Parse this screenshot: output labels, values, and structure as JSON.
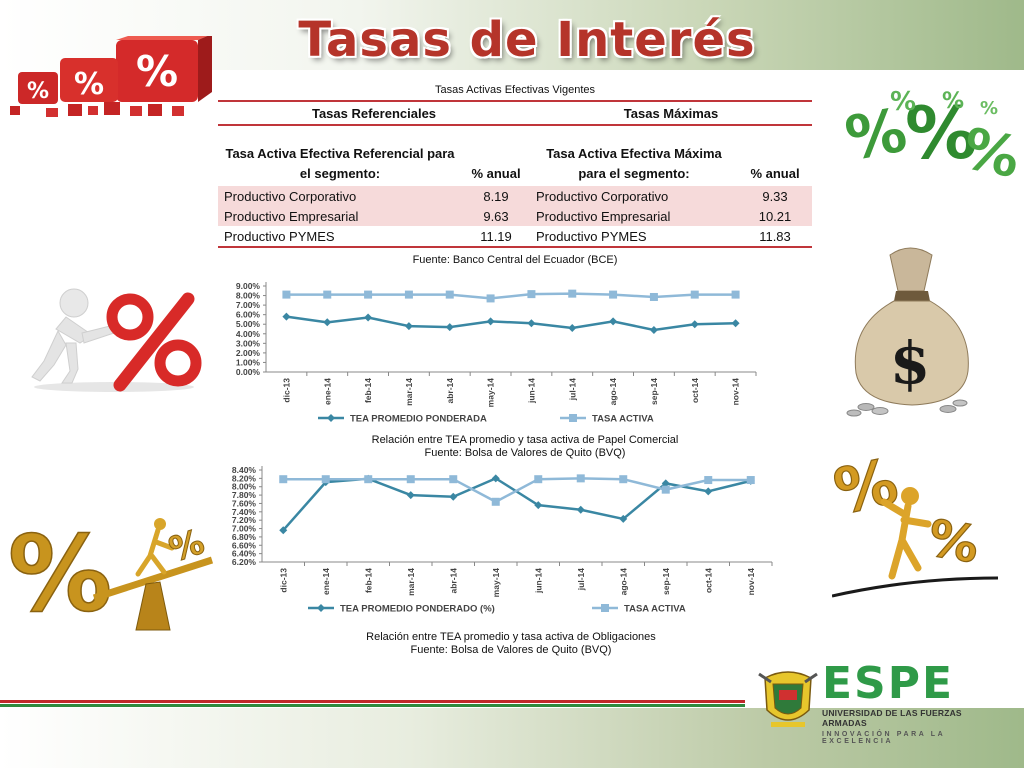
{
  "title": "Tasas de Interés",
  "table": {
    "caption": "Tasas Activas Efectivas Vigentes",
    "group_left": "Tasas Referenciales",
    "group_right": "Tasas Máximas",
    "col1_header": "Tasa Activa Efectiva Referencial para el segmento:",
    "col2_header": "% anual",
    "col3_header": "Tasa Activa Efectiva Máxima para el segmento:",
    "col4_header": "% anual",
    "rows": [
      {
        "ref_segment": "Productivo Corporativo",
        "ref_rate": "8.19",
        "max_segment": "Productivo Corporativo",
        "max_rate": "9.33"
      },
      {
        "ref_segment": "Productivo Empresarial",
        "ref_rate": "9.63",
        "max_segment": "Productivo Empresarial",
        "max_rate": "10.21"
      },
      {
        "ref_segment": "Productivo PYMES",
        "ref_rate": "11.19",
        "max_segment": "Productivo PYMES",
        "max_rate": "11.83"
      }
    ],
    "source": "Fuente: Banco Central del Ecuador (BCE)"
  },
  "chart1_caption": "Relación entre TEA promedio y tasa activa de Papel Comercial",
  "chart1_source": "Fuente: Bolsa de Valores de Quito (BVQ)",
  "chart2_caption": "Relación entre TEA promedio y tasa activa de Obligaciones",
  "chart2_source": "Fuente: Bolsa de Valores de Quito (BVQ)",
  "chart_data": [
    {
      "type": "line",
      "categories": [
        "dic-13",
        "ene-14",
        "feb-14",
        "mar-14",
        "abr-14",
        "may-14",
        "jun-14",
        "jul-14",
        "ago-14",
        "sep-14",
        "oct-14",
        "nov-14"
      ],
      "yticks": [
        "0.00%",
        "1.00%",
        "2.00%",
        "3.00%",
        "4.00%",
        "5.00%",
        "6.00%",
        "7.00%",
        "8.00%",
        "9.00%"
      ],
      "ylim": [
        0,
        9
      ],
      "series": [
        {
          "name": "TEA PROMEDIO PONDERADA",
          "color": "#3a87a3",
          "marker": "diamond",
          "values": [
            5.8,
            5.2,
            5.7,
            4.8,
            4.7,
            5.3,
            5.1,
            4.6,
            5.3,
            4.4,
            5.0,
            5.1
          ]
        },
        {
          "name": "TASA ACTIVA",
          "color": "#8fb9d8",
          "marker": "square",
          "values": [
            8.1,
            8.1,
            8.1,
            8.1,
            8.1,
            7.7,
            8.15,
            8.2,
            8.1,
            7.85,
            8.1,
            8.1
          ]
        }
      ]
    },
    {
      "type": "line",
      "categories": [
        "dic-13",
        "ene-14",
        "feb-14",
        "mar-14",
        "abr-14",
        "may-14",
        "jun-14",
        "jul-14",
        "ago-14",
        "sep-14",
        "oct-14",
        "nov-14"
      ],
      "yticks": [
        "6.20%",
        "6.40%",
        "6.60%",
        "6.80%",
        "7.00%",
        "7.20%",
        "7.40%",
        "7.60%",
        "7.80%",
        "8.00%",
        "8.20%",
        "8.40%"
      ],
      "ylim": [
        6.2,
        8.4
      ],
      "series": [
        {
          "name": "TEA PROMEDIO PONDERADO (%)",
          "color": "#3a87a3",
          "marker": "diamond",
          "values": [
            6.96,
            8.11,
            8.19,
            7.8,
            7.76,
            8.2,
            7.56,
            7.45,
            7.23,
            8.08,
            7.89,
            8.14
          ]
        },
        {
          "name": "TASA ACTIVA",
          "color": "#8fb9d8",
          "marker": "square",
          "values": [
            8.18,
            8.18,
            8.18,
            8.18,
            8.18,
            7.64,
            8.18,
            8.2,
            8.18,
            7.93,
            8.16,
            8.16
          ]
        }
      ]
    }
  ],
  "logo": {
    "name": "ESPE",
    "subtitle": "UNIVERSIDAD DE LAS FUERZAS ARMADAS",
    "tagline": "INNOVACIÓN PARA LA EXCELENCIA",
    "color": "#2f9a48"
  },
  "images": [
    "percent-dice-image",
    "green-percent-image",
    "man-pushing-percent-image",
    "money-bag-image",
    "gold-percent-scale-image",
    "gold-man-percent-image",
    "espe-crest-image"
  ]
}
